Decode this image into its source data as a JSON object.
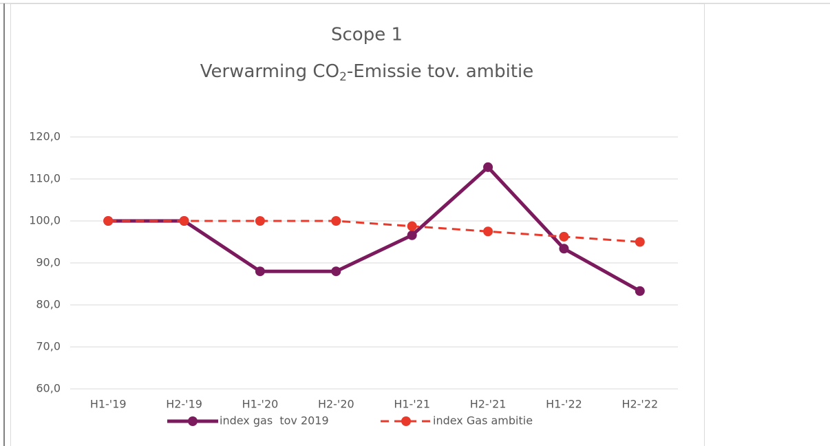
{
  "chart_data": {
    "type": "line",
    "title": "Scope 1",
    "subtitle_parts": [
      "Verwarming CO",
      "2",
      "-Emissie tov. ambitie"
    ],
    "categories": [
      "H1-'19",
      "H2-'19",
      "H1-'20",
      "H2-'20",
      "H1-'21",
      "H2-'21",
      "H1-'22",
      "H2-'22"
    ],
    "series": [
      {
        "name": "index gas  tov 2019",
        "color": "#7b1b5e",
        "dashed": false,
        "values": [
          100,
          100,
          88,
          88,
          96.6,
          112.8,
          93.4,
          83.3
        ]
      },
      {
        "name": "index Gas ambitie",
        "color": "#e8392b",
        "dashed": true,
        "values": [
          100,
          100,
          100,
          100,
          98.75,
          97.5,
          96.25,
          95
        ]
      }
    ],
    "ylim": [
      60,
      120
    ],
    "yticks": [
      {
        "value": 60,
        "label": "60,0"
      },
      {
        "value": 70,
        "label": "70,0"
      },
      {
        "value": 80,
        "label": "80,0"
      },
      {
        "value": 90,
        "label": "90,0"
      },
      {
        "value": 100,
        "label": "100,0"
      },
      {
        "value": 110,
        "label": "110,0"
      },
      {
        "value": 120,
        "label": "120,0"
      }
    ],
    "grid": true,
    "legend": "bottom"
  }
}
